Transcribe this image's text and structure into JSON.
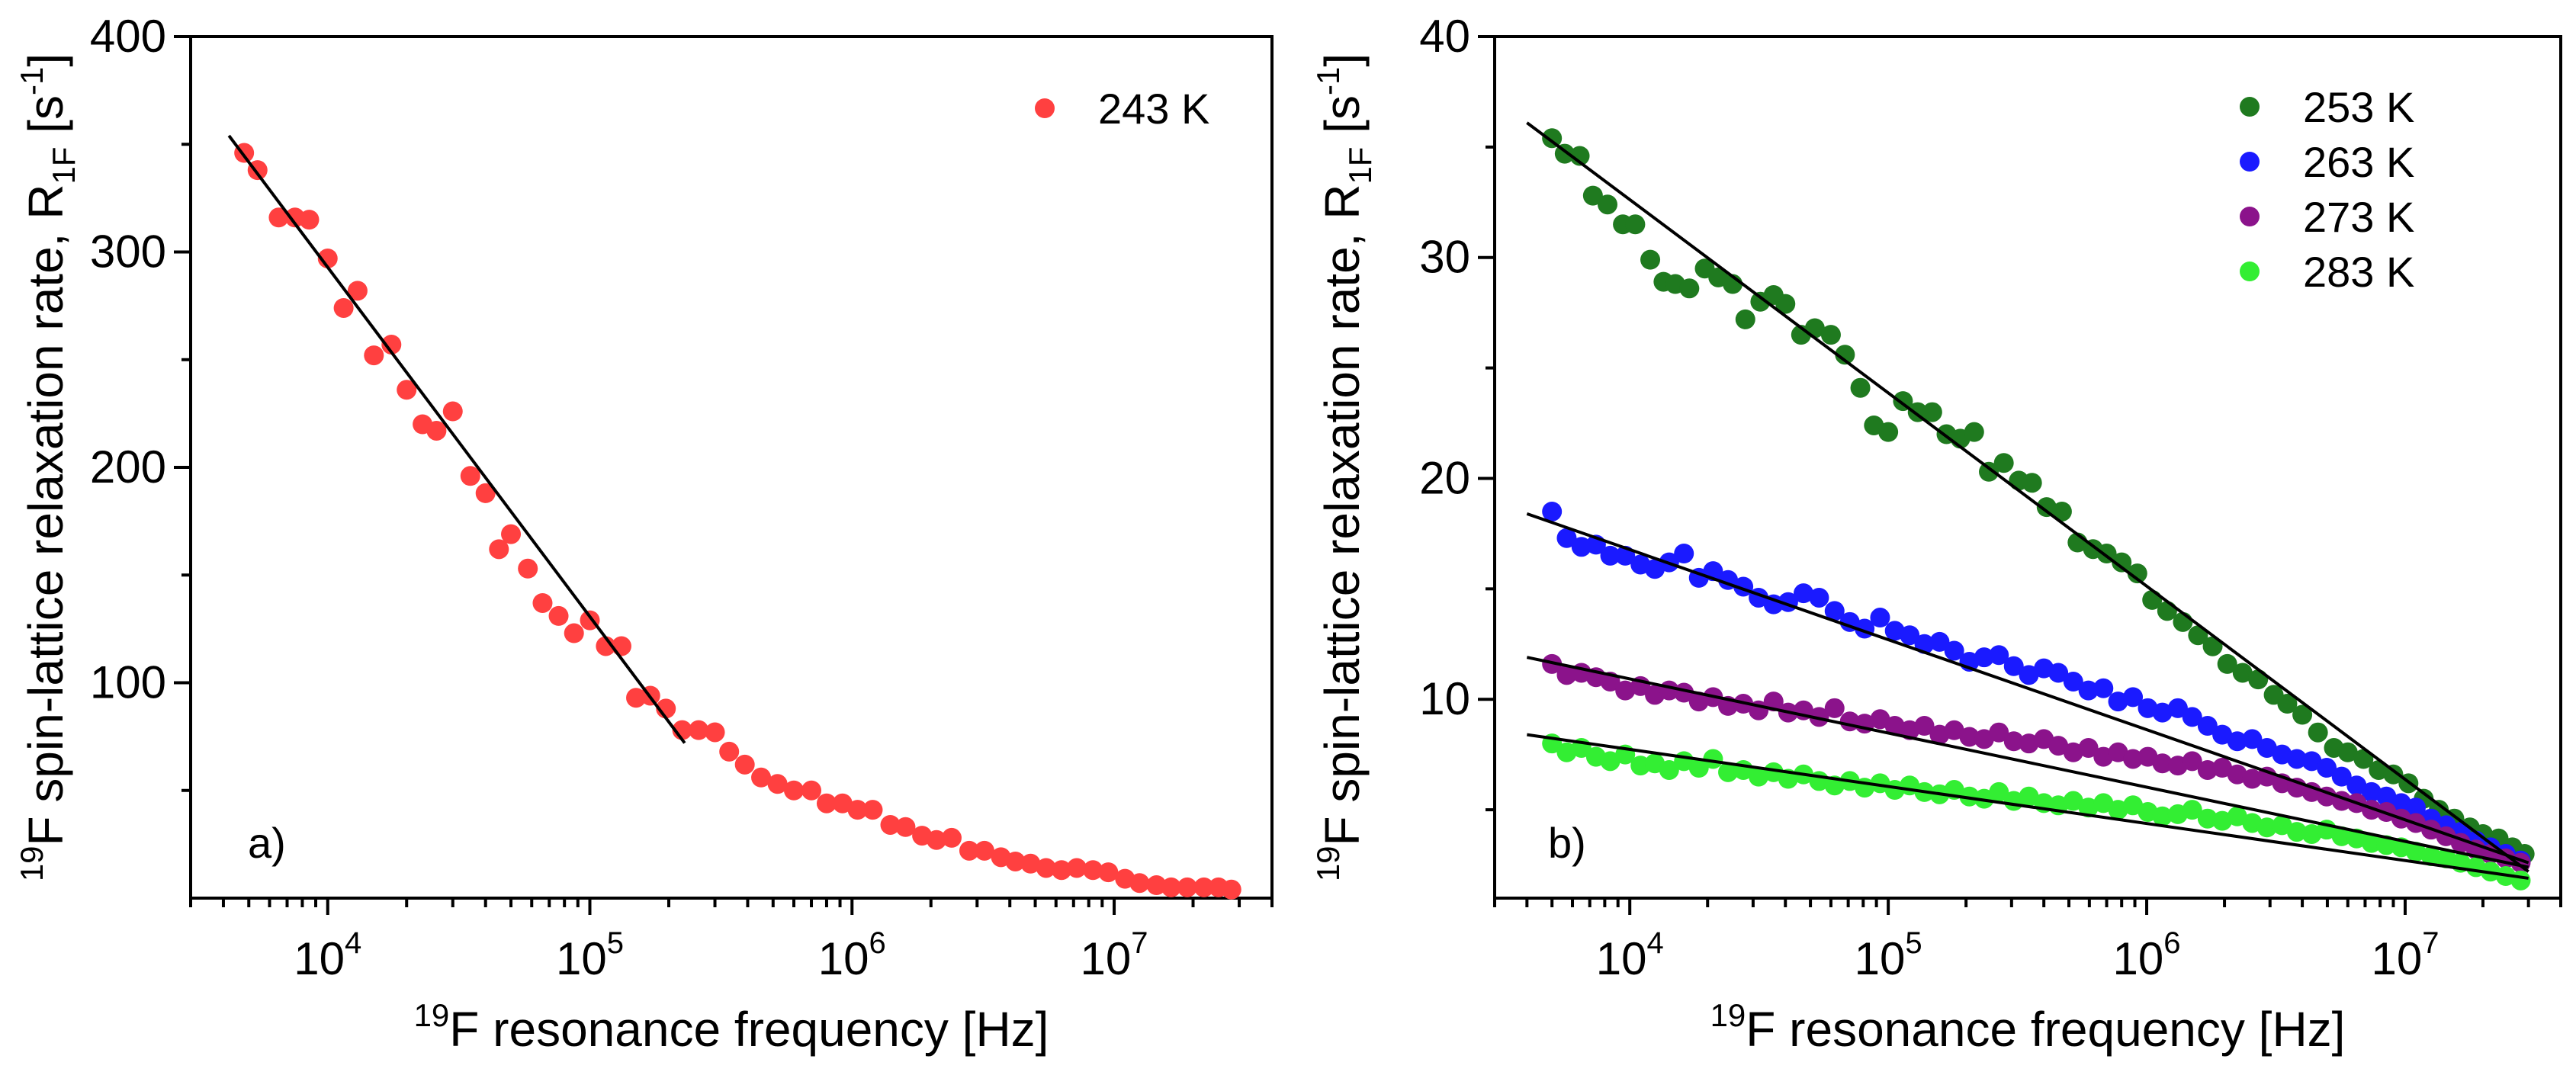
{
  "chart_data": [
    {
      "type": "scatter",
      "panel": "a",
      "panel_label": "a)",
      "xscale": "log",
      "xlim": [
        3000,
        40000000
      ],
      "ylim": [
        0,
        400
      ],
      "yticks": [
        100,
        200,
        300,
        400
      ],
      "ytick_labels": [
        "100",
        "200",
        "300",
        "400"
      ],
      "xticks": [
        10000,
        100000,
        1000000,
        10000000
      ],
      "xtick_labels": [
        {
          "base": "10",
          "exp": "4"
        },
        {
          "base": "10",
          "exp": "5"
        },
        {
          "base": "10",
          "exp": "6"
        },
        {
          "base": "10",
          "exp": "7"
        }
      ],
      "xlabel": {
        "sup": "19",
        "text": "F resonance frequency [Hz]"
      },
      "ylabel": {
        "sup": "19",
        "main": "F spin-lattice relaxation rate, R",
        "sub": "1F",
        "unit_open": " [s",
        "unit_sup": "-1",
        "unit_close": "]"
      },
      "legend_position": "top-right",
      "series": [
        {
          "name": "243 K",
          "color": "#ff4040",
          "x": [
            4800,
            5400,
            6500,
            7500,
            8500,
            10000,
            11500,
            13000,
            15000,
            17500,
            20000,
            23000,
            26000,
            30000,
            35000,
            40000,
            45000,
            50000,
            58000,
            66000,
            76000,
            87000,
            100000,
            115000,
            132000,
            150000,
            170000,
            195000,
            225000,
            260000,
            300000,
            340000,
            390000,
            450000,
            520000,
            600000,
            700000,
            800000,
            920000,
            1050000,
            1200000,
            1400000,
            1600000,
            1850000,
            2100000,
            2400000,
            2800000,
            3200000,
            3700000,
            4200000,
            4800000,
            5500000,
            6300000,
            7200000,
            8300000,
            9500000,
            11000000,
            12500000,
            14500000,
            16500000,
            19000000,
            22000000,
            25000000,
            28000000
          ],
          "y": [
            346,
            338,
            316,
            316,
            315,
            297,
            274,
            282,
            252,
            257,
            236,
            220,
            217,
            226,
            196,
            188,
            162,
            169,
            153,
            137,
            131,
            123,
            129,
            117,
            117,
            93,
            94,
            88,
            78,
            78,
            77,
            68,
            62,
            56,
            53,
            50,
            50,
            44,
            44,
            41,
            41,
            34,
            33,
            29,
            27,
            28,
            22,
            22,
            19,
            17,
            16,
            14,
            13,
            14,
            13,
            12,
            9,
            7,
            6,
            5,
            5,
            5,
            5,
            4
          ]
        }
      ],
      "fit_lines": [
        {
          "x": [
            4200,
            230000
          ],
          "y": [
            354,
            72
          ]
        }
      ]
    },
    {
      "type": "scatter",
      "panel": "b",
      "panel_label": "b)",
      "xscale": "log",
      "xlim": [
        3000,
        40000000
      ],
      "ylim": [
        1,
        40
      ],
      "yticks": [
        10,
        20,
        30,
        40
      ],
      "ytick_labels": [
        "10",
        "20",
        "30",
        "40"
      ],
      "xticks": [
        10000,
        100000,
        1000000,
        10000000
      ],
      "xtick_labels": [
        {
          "base": "10",
          "exp": "4"
        },
        {
          "base": "10",
          "exp": "5"
        },
        {
          "base": "10",
          "exp": "6"
        },
        {
          "base": "10",
          "exp": "7"
        }
      ],
      "xlabel": {
        "sup": "19",
        "text": "F resonance frequency [Hz]"
      },
      "ylabel": {
        "sup": "19",
        "main": "F spin-lattice relaxation rate, R",
        "sub": "1F",
        "unit_open": " [s",
        "unit_sup": "-1",
        "unit_close": "]"
      },
      "legend_position": "top-right",
      "series": [
        {
          "name": "253 K",
          "color": "#1f7a1f",
          "x": [
            5000,
            5600,
            6400,
            7200,
            8200,
            9400,
            10500,
            12000,
            13500,
            15000,
            17000,
            19500,
            22000,
            25000,
            28000,
            32000,
            36000,
            40000,
            46000,
            52000,
            60000,
            68000,
            78000,
            88000,
            100000,
            114000,
            130000,
            148000,
            168000,
            190000,
            215000,
            245000,
            280000,
            320000,
            360000,
            410000,
            470000,
            540000,
            620000,
            700000,
            800000,
            920000,
            1050000,
            1200000,
            1380000,
            1580000,
            1800000,
            2050000,
            2350000,
            2700000,
            3100000,
            3500000,
            4000000,
            4600000,
            5300000,
            6000000,
            6900000,
            7900000,
            9000000,
            10300000,
            11800000,
            13500000,
            15500000,
            17800000,
            20000000,
            23000000,
            26000000,
            29000000
          ],
          "y": [
            35.4,
            34.7,
            34.6,
            32.8,
            32.4,
            31.5,
            31.5,
            29.9,
            28.9,
            28.8,
            28.6,
            29.5,
            29.1,
            28.8,
            27.2,
            28.0,
            28.3,
            27.9,
            26.5,
            26.8,
            26.5,
            25.6,
            24.1,
            22.4,
            22.1,
            23.5,
            23.0,
            23.0,
            22.0,
            21.8,
            22.1,
            20.3,
            20.7,
            19.9,
            19.8,
            18.7,
            18.5,
            17.1,
            16.8,
            16.6,
            16.2,
            15.7,
            14.5,
            14.0,
            13.5,
            12.9,
            12.4,
            11.6,
            11.2,
            10.9,
            10.2,
            9.8,
            9.3,
            8.5,
            7.8,
            7.6,
            7.3,
            6.8,
            6.6,
            6.2,
            5.5,
            5.0,
            4.6,
            4.2,
            3.9,
            3.7,
            3.3,
            3.0
          ]
        },
        {
          "name": "263 K",
          "color": "#1a1aff",
          "x": [
            5000,
            5700,
            6500,
            7400,
            8400,
            9600,
            11000,
            12500,
            14200,
            16200,
            18500,
            21000,
            24000,
            27500,
            31500,
            36000,
            41000,
            47000,
            54000,
            62000,
            71000,
            81000,
            93000,
            106000,
            121000,
            138000,
            158000,
            180000,
            206000,
            235000,
            268000,
            306000,
            350000,
            400000,
            455000,
            520000,
            595000,
            680000,
            775000,
            885000,
            1010000,
            1150000,
            1320000,
            1500000,
            1720000,
            1960000,
            2240000,
            2560000,
            2920000,
            3340000,
            3810000,
            4350000,
            4970000,
            5680000,
            6490000,
            7410000,
            8460000,
            9660000,
            11000000,
            12600000,
            14400000,
            16400000,
            18800000,
            21400000,
            24500000,
            28000000
          ],
          "y": [
            18.5,
            17.3,
            16.9,
            17.0,
            16.5,
            16.5,
            16.1,
            15.9,
            16.2,
            16.6,
            15.5,
            15.8,
            15.4,
            15.1,
            14.6,
            14.3,
            14.4,
            14.8,
            14.6,
            14.0,
            13.5,
            13.2,
            13.7,
            13.1,
            12.9,
            12.5,
            12.6,
            12.2,
            11.7,
            11.9,
            12.0,
            11.5,
            11.1,
            11.4,
            11.2,
            10.8,
            10.4,
            10.5,
            9.9,
            10.1,
            9.6,
            9.4,
            9.6,
            9.2,
            8.8,
            8.4,
            8.1,
            8.2,
            7.8,
            7.5,
            7.3,
            7.2,
            6.9,
            6.5,
            6.1,
            5.8,
            5.6,
            5.3,
            5.1,
            4.6,
            4.3,
            4.0,
            3.6,
            3.3,
            3.0,
            2.7
          ]
        },
        {
          "name": "273 K",
          "color": "#8b138b",
          "x": [
            5000,
            5700,
            6500,
            7400,
            8400,
            9600,
            11000,
            12500,
            14200,
            16200,
            18500,
            21000,
            24000,
            27500,
            31500,
            36000,
            41000,
            47000,
            54000,
            62000,
            71000,
            81000,
            93000,
            106000,
            121000,
            138000,
            158000,
            180000,
            206000,
            235000,
            268000,
            306000,
            350000,
            400000,
            455000,
            520000,
            595000,
            680000,
            775000,
            885000,
            1010000,
            1150000,
            1320000,
            1500000,
            1720000,
            1960000,
            2240000,
            2560000,
            2920000,
            3340000,
            3810000,
            4350000,
            4970000,
            5680000,
            6490000,
            7410000,
            8460000,
            9660000,
            11000000,
            12600000,
            14400000,
            16400000,
            18800000,
            21400000,
            24500000,
            28000000
          ],
          "y": [
            11.6,
            11.1,
            11.2,
            11.0,
            10.8,
            10.4,
            10.6,
            10.2,
            10.4,
            10.3,
            9.9,
            10.1,
            9.7,
            9.8,
            9.5,
            9.9,
            9.4,
            9.5,
            9.2,
            9.6,
            9.0,
            8.9,
            9.1,
            8.8,
            8.6,
            8.8,
            8.4,
            8.6,
            8.3,
            8.2,
            8.5,
            8.1,
            8.0,
            8.2,
            7.9,
            7.6,
            7.8,
            7.4,
            7.6,
            7.3,
            7.4,
            7.1,
            7.0,
            7.2,
            6.8,
            6.9,
            6.6,
            6.4,
            6.5,
            6.2,
            6.0,
            5.8,
            5.6,
            5.4,
            5.3,
            5.0,
            4.9,
            4.6,
            4.4,
            4.1,
            3.8,
            3.5,
            3.2,
            3.0,
            2.8,
            2.6
          ]
        },
        {
          "name": "283 K",
          "color": "#33ee33",
          "x": [
            5000,
            5700,
            6500,
            7400,
            8400,
            9600,
            11000,
            12500,
            14200,
            16200,
            18500,
            21000,
            24000,
            27500,
            31500,
            36000,
            41000,
            47000,
            54000,
            62000,
            71000,
            81000,
            93000,
            106000,
            121000,
            138000,
            158000,
            180000,
            206000,
            235000,
            268000,
            306000,
            350000,
            400000,
            455000,
            520000,
            595000,
            680000,
            775000,
            885000,
            1010000,
            1150000,
            1320000,
            1500000,
            1720000,
            1960000,
            2240000,
            2560000,
            2920000,
            3340000,
            3810000,
            4350000,
            4970000,
            5680000,
            6490000,
            7410000,
            8460000,
            9660000,
            11000000,
            12600000,
            14400000,
            16400000,
            18800000,
            21400000,
            24500000,
            28000000
          ],
          "y": [
            8.0,
            7.6,
            7.8,
            7.4,
            7.2,
            7.5,
            7.0,
            7.1,
            6.8,
            7.2,
            6.9,
            7.3,
            6.7,
            6.8,
            6.5,
            6.7,
            6.4,
            6.6,
            6.3,
            6.1,
            6.3,
            6.0,
            6.2,
            5.9,
            6.1,
            5.8,
            5.7,
            5.9,
            5.6,
            5.5,
            5.8,
            5.4,
            5.6,
            5.3,
            5.2,
            5.4,
            5.1,
            5.3,
            5.0,
            5.2,
            4.9,
            4.7,
            4.8,
            5.0,
            4.6,
            4.5,
            4.7,
            4.4,
            4.2,
            4.3,
            4.0,
            3.9,
            4.1,
            3.8,
            3.7,
            3.5,
            3.4,
            3.3,
            3.1,
            2.9,
            2.8,
            2.6,
            2.4,
            2.2,
            2.0,
            1.8
          ]
        }
      ],
      "fit_lines": [
        {
          "x": [
            4000,
            30000000
          ],
          "y": [
            36.1,
            2.2
          ]
        },
        {
          "x": [
            4000,
            30000000
          ],
          "y": [
            18.4,
            2.6
          ]
        },
        {
          "x": [
            4000,
            30000000
          ],
          "y": [
            11.9,
            2.4
          ]
        },
        {
          "x": [
            4000,
            30000000
          ],
          "y": [
            8.4,
            1.9
          ]
        }
      ]
    }
  ]
}
